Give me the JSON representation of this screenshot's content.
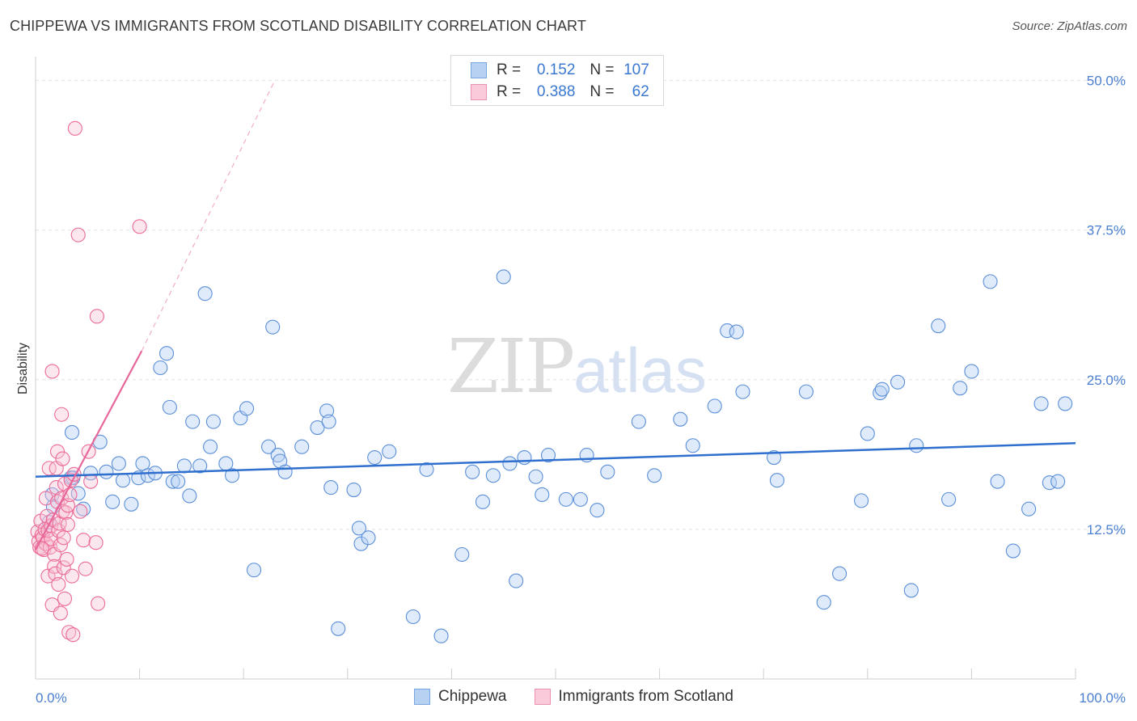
{
  "title": "CHIPPEWA VS IMMIGRANTS FROM SCOTLAND DISABILITY CORRELATION CHART",
  "source": "Source: ZipAtlas.com",
  "watermark": {
    "zip": "ZIP",
    "atlas": "atlas"
  },
  "legend": {
    "rows": [
      {
        "r_label": "R =",
        "r_value": "0.152",
        "n_label": "N =",
        "n_value": "107",
        "color": "#a9c8f0",
        "border": "#7aa6df"
      },
      {
        "r_label": "R =",
        "r_value": "0.388",
        "n_label": "N =",
        "n_value": "62",
        "color": "#f7bfd0",
        "border": "#ec92ae"
      }
    ]
  },
  "bottom_legend": [
    "Chippewa",
    "Immigrants from Scotland"
  ],
  "chart_data": {
    "type": "scatter",
    "xlabel": "",
    "ylabel": "Disability",
    "xlim": [
      0,
      100
    ],
    "ylim": [
      0,
      52
    ],
    "x_tick_labels": [
      "0.0%",
      "100.0%"
    ],
    "y_ticks": [
      12.5,
      25.0,
      37.5,
      50.0
    ],
    "y_tick_labels": [
      "12.5%",
      "25.0%",
      "37.5%",
      "50.0%"
    ],
    "colors": {
      "blue": "#5b8fd8",
      "blue_fill": "#b7d1f3",
      "pink": "#ec6a98",
      "pink_fill": "#f7c4d4",
      "trend_blue": "#2f6fce",
      "trend_pink": "#e8679a"
    },
    "series": [
      {
        "name": "Chippewa",
        "trend": {
          "x0": 0,
          "y0": 16.9,
          "x1": 100,
          "y1": 19.7
        },
        "points": [
          [
            1.3,
            13.1
          ],
          [
            1.6,
            15.4
          ],
          [
            1.7,
            14.4
          ],
          [
            3.4,
            16.8
          ],
          [
            3.5,
            20.6
          ],
          [
            3.6,
            16.8
          ],
          [
            4.1,
            15.5
          ],
          [
            4.6,
            14.2
          ],
          [
            5.3,
            17.2
          ],
          [
            6.2,
            19.8
          ],
          [
            6.8,
            17.3
          ],
          [
            7.4,
            14.8
          ],
          [
            8.0,
            18.0
          ],
          [
            8.4,
            16.6
          ],
          [
            9.2,
            14.6
          ],
          [
            9.9,
            16.8
          ],
          [
            10.3,
            18.0
          ],
          [
            10.8,
            17.0
          ],
          [
            11.5,
            17.2
          ],
          [
            12.0,
            26.0
          ],
          [
            12.6,
            27.2
          ],
          [
            12.9,
            22.7
          ],
          [
            13.2,
            16.5
          ],
          [
            13.7,
            16.5
          ],
          [
            14.3,
            17.8
          ],
          [
            14.8,
            15.3
          ],
          [
            15.1,
            21.5
          ],
          [
            15.8,
            17.8
          ],
          [
            16.3,
            32.2
          ],
          [
            16.8,
            19.4
          ],
          [
            17.1,
            21.5
          ],
          [
            18.3,
            18.0
          ],
          [
            18.9,
            17.0
          ],
          [
            19.7,
            21.8
          ],
          [
            20.3,
            22.6
          ],
          [
            21.0,
            9.1
          ],
          [
            22.4,
            19.4
          ],
          [
            22.8,
            29.4
          ],
          [
            23.3,
            18.7
          ],
          [
            23.5,
            18.2
          ],
          [
            24.0,
            17.3
          ],
          [
            25.6,
            19.4
          ],
          [
            27.1,
            21.0
          ],
          [
            28.0,
            22.4
          ],
          [
            28.2,
            21.5
          ],
          [
            28.4,
            16.0
          ],
          [
            29.1,
            4.2
          ],
          [
            30.6,
            15.8
          ],
          [
            31.1,
            12.6
          ],
          [
            31.3,
            11.3
          ],
          [
            32.0,
            11.8
          ],
          [
            32.6,
            18.5
          ],
          [
            34.0,
            19.0
          ],
          [
            36.3,
            5.2
          ],
          [
            37.6,
            17.5
          ],
          [
            39.0,
            3.6
          ],
          [
            41.0,
            10.4
          ],
          [
            42.0,
            17.3
          ],
          [
            43.0,
            14.8
          ],
          [
            44.0,
            17.0
          ],
          [
            45.0,
            33.6
          ],
          [
            45.6,
            18.0
          ],
          [
            46.2,
            8.2
          ],
          [
            47.0,
            18.5
          ],
          [
            48.1,
            16.9
          ],
          [
            48.7,
            15.4
          ],
          [
            49.3,
            18.7
          ],
          [
            51.0,
            15.0
          ],
          [
            52.4,
            15.0
          ],
          [
            53.0,
            18.7
          ],
          [
            54.0,
            14.1
          ],
          [
            55.0,
            17.3
          ],
          [
            58.0,
            21.5
          ],
          [
            59.5,
            17.0
          ],
          [
            62.0,
            21.7
          ],
          [
            63.2,
            19.5
          ],
          [
            65.3,
            22.8
          ],
          [
            66.5,
            29.1
          ],
          [
            67.4,
            29.0
          ],
          [
            68.0,
            24.0
          ],
          [
            71.0,
            18.5
          ],
          [
            71.3,
            16.6
          ],
          [
            74.1,
            24.0
          ],
          [
            75.8,
            6.4
          ],
          [
            77.3,
            8.8
          ],
          [
            79.4,
            14.9
          ],
          [
            80.0,
            20.5
          ],
          [
            81.2,
            23.9
          ],
          [
            81.4,
            24.2
          ],
          [
            82.9,
            24.8
          ],
          [
            84.2,
            7.4
          ],
          [
            84.7,
            19.5
          ],
          [
            86.8,
            29.5
          ],
          [
            87.8,
            15.0
          ],
          [
            88.9,
            24.3
          ],
          [
            90.0,
            25.7
          ],
          [
            91.8,
            33.2
          ],
          [
            92.5,
            16.5
          ],
          [
            94.0,
            10.7
          ],
          [
            95.5,
            14.2
          ],
          [
            96.7,
            23.0
          ],
          [
            97.5,
            16.4
          ],
          [
            98.3,
            16.5
          ],
          [
            99.0,
            23.0
          ]
        ]
      },
      {
        "name": "Immigrants from Scotland",
        "trend": {
          "x0": 0,
          "y0": 10.8,
          "x1": 10.2,
          "y1": 27.4,
          "dash_x1": 23.0,
          "dash_y1": 50.0
        },
        "points": [
          [
            0.2,
            12.3
          ],
          [
            0.3,
            11.5
          ],
          [
            0.4,
            11.0
          ],
          [
            0.5,
            13.2
          ],
          [
            0.6,
            12.0
          ],
          [
            0.7,
            11.8
          ],
          [
            0.8,
            10.8
          ],
          [
            0.9,
            12.5
          ],
          [
            1.0,
            15.1
          ],
          [
            1.0,
            11.3
          ],
          [
            1.1,
            13.6
          ],
          [
            1.2,
            12.4
          ],
          [
            1.2,
            8.6
          ],
          [
            1.3,
            17.6
          ],
          [
            1.4,
            11.0
          ],
          [
            1.5,
            12.8
          ],
          [
            1.5,
            11.7
          ],
          [
            1.6,
            25.7
          ],
          [
            1.6,
            6.2
          ],
          [
            1.7,
            13.3
          ],
          [
            1.8,
            10.4
          ],
          [
            1.8,
            9.4
          ],
          [
            1.9,
            8.8
          ],
          [
            2.0,
            17.6
          ],
          [
            2.0,
            16.0
          ],
          [
            2.1,
            14.8
          ],
          [
            2.1,
            19.0
          ],
          [
            2.2,
            12.4
          ],
          [
            2.2,
            7.9
          ],
          [
            2.3,
            13.0
          ],
          [
            2.4,
            11.2
          ],
          [
            2.4,
            5.5
          ],
          [
            2.5,
            22.1
          ],
          [
            2.5,
            15.1
          ],
          [
            2.6,
            18.4
          ],
          [
            2.6,
            14.0
          ],
          [
            2.7,
            11.8
          ],
          [
            2.7,
            9.3
          ],
          [
            2.8,
            16.3
          ],
          [
            2.8,
            6.7
          ],
          [
            2.9,
            13.9
          ],
          [
            3.0,
            10.0
          ],
          [
            3.1,
            12.9
          ],
          [
            3.1,
            14.5
          ],
          [
            3.2,
            3.9
          ],
          [
            3.3,
            15.4
          ],
          [
            3.4,
            16.6
          ],
          [
            3.5,
            8.6
          ],
          [
            3.6,
            3.7
          ],
          [
            3.7,
            17.1
          ],
          [
            3.8,
            46.0
          ],
          [
            4.1,
            37.1
          ],
          [
            4.3,
            14.0
          ],
          [
            4.6,
            11.6
          ],
          [
            4.8,
            9.2
          ],
          [
            5.1,
            19.0
          ],
          [
            5.3,
            16.5
          ],
          [
            5.8,
            11.4
          ],
          [
            5.9,
            30.3
          ],
          [
            6.0,
            6.3
          ],
          [
            10.0,
            37.8
          ],
          [
            0.6,
            10.9
          ]
        ]
      }
    ]
  }
}
